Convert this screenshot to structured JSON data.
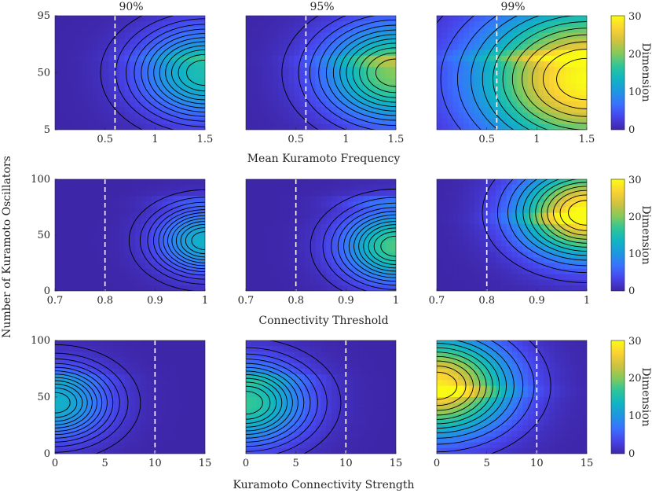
{
  "figure": {
    "column_titles": [
      "90%",
      "95%",
      "99%"
    ],
    "ylabel": "Number of Kuramoto Oscillators",
    "row_xlabels": [
      "Mean Kuramoto Frequency",
      "Connectivity Threshold",
      "Kuramoto Connectivity Strength"
    ],
    "colorbar_label": "Dimension",
    "colorbar_ticks": [
      "0",
      "10",
      "20",
      "30"
    ],
    "colormap": [
      "#3e26a8",
      "#4743e9",
      "#3a70ff",
      "#1f96e1",
      "#10b4c4",
      "#2cc59b",
      "#82ca5c",
      "#cec240",
      "#fbd233",
      "#f9fb15"
    ],
    "contour_color": "#000000",
    "reference_line_color": "#ffffff"
  },
  "chart_data": [
    {
      "type": "heatmap",
      "row": 1,
      "col": 1,
      "title": "90%",
      "xlabel": "Mean Kuramoto Frequency",
      "ylabel": "Number of Kuramoto Oscillators",
      "xlim": [
        0,
        1.5
      ],
      "ylim": [
        5,
        95
      ],
      "xticks": [
        "0.5",
        "1",
        "1.5"
      ],
      "xtick_values": [
        0.5,
        1,
        1.5
      ],
      "yticks": [
        "5",
        "50",
        "95"
      ],
      "ytick_values": [
        5,
        50,
        95
      ],
      "reference_x": 0.6,
      "clim": [
        0,
        30
      ],
      "levels": 20,
      "peak": {
        "x": 1.5,
        "y": 50,
        "value": 15
      },
      "spread": 0.55,
      "band_y": 62
    },
    {
      "type": "heatmap",
      "row": 1,
      "col": 2,
      "title": "95%",
      "xlabel": "Mean Kuramoto Frequency",
      "ylabel": "Number of Kuramoto Oscillators",
      "xlim": [
        0,
        1.5
      ],
      "ylim": [
        5,
        95
      ],
      "xticks": [
        "0.5",
        "1",
        "1.5"
      ],
      "xtick_values": [
        0.5,
        1,
        1.5
      ],
      "yticks": [
        "5",
        "50",
        "95"
      ],
      "ytick_values": [
        5,
        50,
        95
      ],
      "reference_x": 0.6,
      "clim": [
        0,
        30
      ],
      "levels": 20,
      "peak": {
        "x": 1.5,
        "y": 50,
        "value": 20
      },
      "spread": 0.6,
      "band_y": 60
    },
    {
      "type": "heatmap",
      "row": 1,
      "col": 3,
      "title": "99%",
      "xlabel": "Mean Kuramoto Frequency",
      "ylabel": "Number of Kuramoto Oscillators",
      "xlim": [
        0,
        1.5
      ],
      "ylim": [
        5,
        95
      ],
      "xticks": [
        "0.5",
        "1",
        "1.5"
      ],
      "xtick_values": [
        0.5,
        1,
        1.5
      ],
      "yticks": [
        "5",
        "50",
        "95"
      ],
      "ytick_values": [
        5,
        50,
        95
      ],
      "reference_x": 0.6,
      "clim": [
        0,
        30
      ],
      "levels": 20,
      "peak": {
        "x": 1.5,
        "y": 45,
        "value": 30
      },
      "spread": 0.9,
      "band_y": 62
    },
    {
      "type": "heatmap",
      "row": 2,
      "col": 1,
      "title": "",
      "xlabel": "Connectivity Threshold",
      "ylabel": "Number of Kuramoto Oscillators",
      "xlim": [
        0.7,
        1
      ],
      "ylim": [
        0,
        100
      ],
      "xticks": [
        "0.7",
        "0.8",
        "0.9",
        "1"
      ],
      "xtick_values": [
        0.7,
        0.8,
        0.9,
        1
      ],
      "yticks": [
        "0",
        "50",
        "100"
      ],
      "ytick_values": [
        0,
        50,
        100
      ],
      "reference_x": 0.8,
      "clim": [
        0,
        30
      ],
      "levels": 20,
      "peak": {
        "x": 1,
        "y": 45,
        "value": 13
      },
      "spread": 0.4,
      "band_y": 80
    },
    {
      "type": "heatmap",
      "row": 2,
      "col": 2,
      "title": "",
      "xlabel": "Connectivity Threshold",
      "ylabel": "Number of Kuramoto Oscillators",
      "xlim": [
        0.7,
        1
      ],
      "ylim": [
        0,
        100
      ],
      "xticks": [
        "0.7",
        "0.8",
        "0.9",
        "1"
      ],
      "xtick_values": [
        0.7,
        0.8,
        0.9,
        1
      ],
      "yticks": [
        "0",
        "50",
        "100"
      ],
      "ytick_values": [
        0,
        50,
        100
      ],
      "reference_x": 0.8,
      "clim": [
        0,
        30
      ],
      "levels": 20,
      "peak": {
        "x": 1,
        "y": 40,
        "value": 18
      },
      "spread": 0.45,
      "band_y": 80
    },
    {
      "type": "heatmap",
      "row": 2,
      "col": 3,
      "title": "",
      "xlabel": "Connectivity Threshold",
      "ylabel": "Number of Kuramoto Oscillators",
      "xlim": [
        0.7,
        1
      ],
      "ylim": [
        0,
        100
      ],
      "xticks": [
        "0.7",
        "0.8",
        "0.9",
        "1"
      ],
      "xtick_values": [
        0.7,
        0.8,
        0.9,
        1
      ],
      "yticks": [
        "0",
        "50",
        "100"
      ],
      "ytick_values": [
        0,
        50,
        100
      ],
      "reference_x": 0.8,
      "clim": [
        0,
        30
      ],
      "levels": 20,
      "peak": {
        "x": 1,
        "y": 70,
        "value": 30
      },
      "spread": 0.55,
      "band_y": 65
    },
    {
      "type": "heatmap",
      "row": 3,
      "col": 1,
      "title": "",
      "xlabel": "Kuramoto Connectivity Strength",
      "ylabel": "Number of Kuramoto Oscillators",
      "xlim": [
        0,
        15
      ],
      "ylim": [
        0,
        100
      ],
      "xticks": [
        "0",
        "5",
        "10",
        "15"
      ],
      "xtick_values": [
        0,
        5,
        10,
        15
      ],
      "yticks": [
        "0",
        "50",
        "100"
      ],
      "ytick_values": [
        0,
        50,
        100
      ],
      "reference_x": 10,
      "clim": [
        0,
        30
      ],
      "levels": 20,
      "peak": {
        "x": 0,
        "y": 45,
        "value": 13
      },
      "spread": 0.45,
      "band_y": 65
    },
    {
      "type": "heatmap",
      "row": 3,
      "col": 2,
      "title": "",
      "xlabel": "Kuramoto Connectivity Strength",
      "ylabel": "Number of Kuramoto Oscillators",
      "xlim": [
        0,
        15
      ],
      "ylim": [
        0,
        100
      ],
      "xticks": [
        "0",
        "5",
        "10",
        "15"
      ],
      "xtick_values": [
        0,
        5,
        10,
        15
      ],
      "yticks": [
        "0",
        "50",
        "100"
      ],
      "ytick_values": [
        0,
        50,
        100
      ],
      "reference_x": 10,
      "clim": [
        0,
        30
      ],
      "levels": 20,
      "peak": {
        "x": 0,
        "y": 45,
        "value": 17
      },
      "spread": 0.5,
      "band_y": 65
    },
    {
      "type": "heatmap",
      "row": 3,
      "col": 3,
      "title": "",
      "xlabel": "Kuramoto Connectivity Strength",
      "ylabel": "Number of Kuramoto Oscillators",
      "xlim": [
        0,
        15
      ],
      "ylim": [
        0,
        100
      ],
      "xticks": [
        "0",
        "5",
        "10",
        "15"
      ],
      "xtick_values": [
        0,
        5,
        10,
        15
      ],
      "yticks": [
        "0",
        "50",
        "100"
      ],
      "ytick_values": [
        0,
        50,
        100
      ],
      "reference_x": 10,
      "clim": [
        0,
        30
      ],
      "levels": 20,
      "peak": {
        "x": 0,
        "y": 60,
        "value": 28
      },
      "spread": 0.6,
      "band_y": 55
    }
  ]
}
